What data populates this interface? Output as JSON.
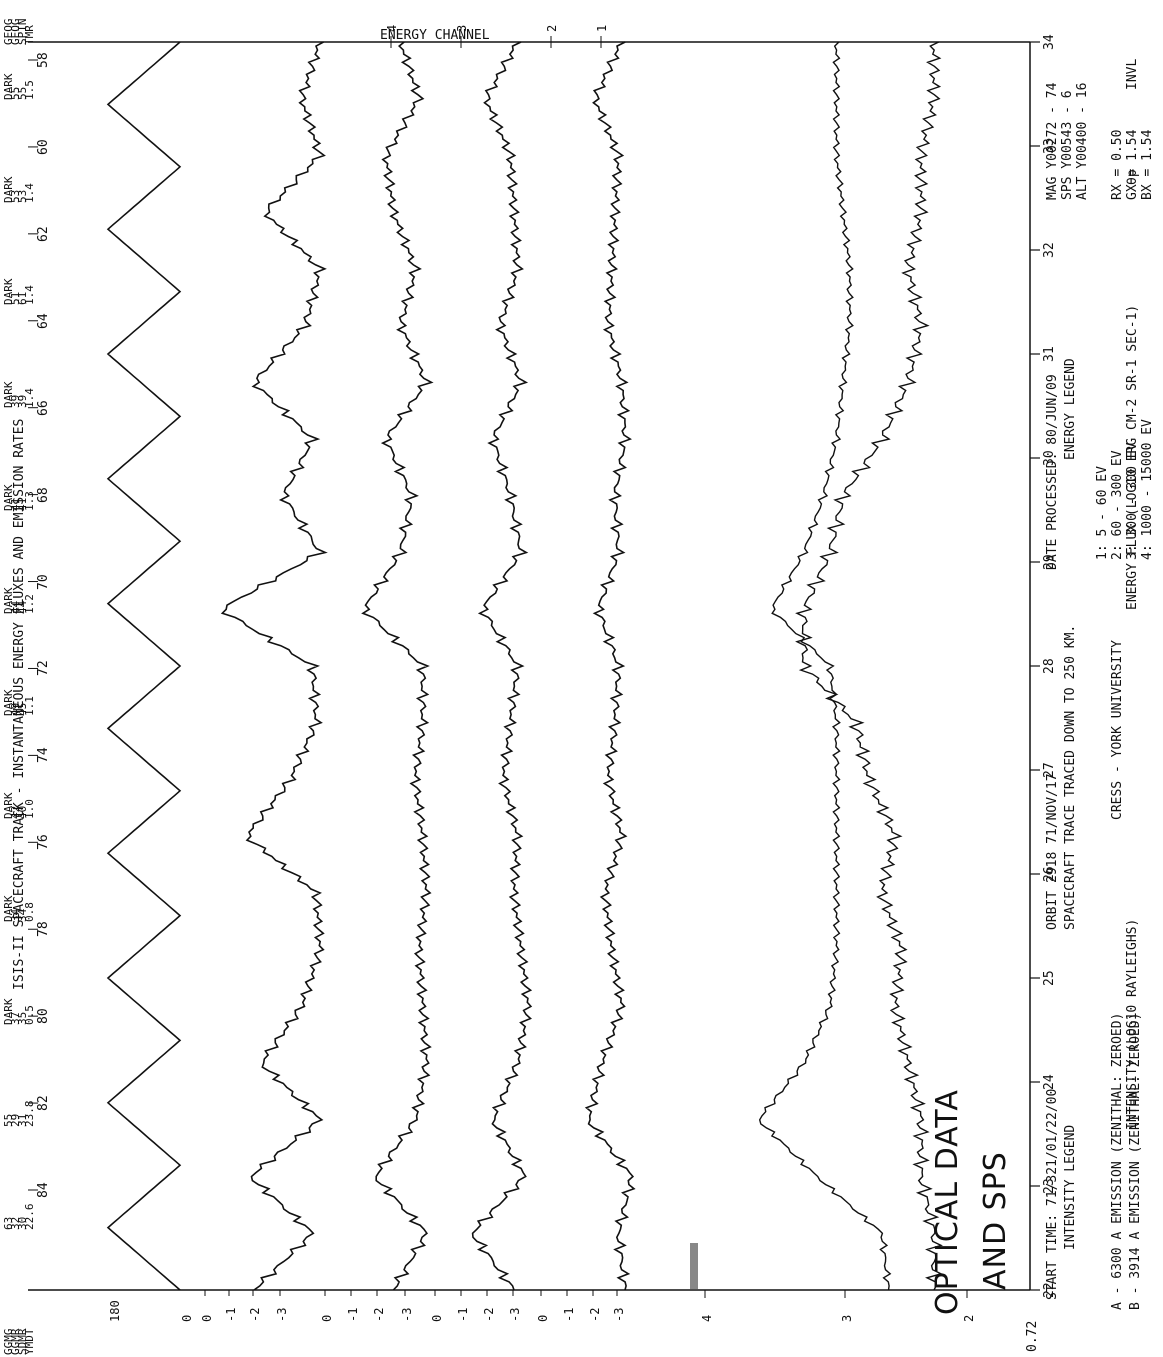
{
  "chart_data": {
    "type": "line",
    "title": "ISIS-II SPACECRAFT TRACK - INSTANTANEOUS ENERGY FLUXES AND EMISSION RATES",
    "orbit_label": "ORBIT 2918 71/NOV/17",
    "start_time_label": "START TIME: 71/321/01/22/00",
    "spacecraft_label": "SPACECRAFT TRACE TRACED DOWN TO 250 KM.",
    "date_processed_label": "DATE PROCESSED: 80/JUN/09",
    "institution": "CRESS - YORK UNIVERSITY",
    "annotation": [
      "OPTICAL DATA",
      "AND SPS"
    ],
    "energy_channel_title": "ENERGY CHANNEL",
    "time_axis": {
      "ticks": [
        "22",
        "23",
        "24",
        "25",
        "26",
        "27",
        "28",
        "29",
        "30",
        "31",
        "32",
        "33",
        "34"
      ],
      "end_label": "0.72"
    },
    "invl_axis": {
      "label": "INVL",
      "ticks": [
        "84",
        "82",
        "80",
        "78",
        "76",
        "74",
        "72",
        "70",
        "68",
        "66",
        "64",
        "62",
        "60",
        "58"
      ]
    },
    "row_labels": [
      "GGMG",
      "GGMR",
      "SDMR",
      "YMDT"
    ],
    "right_row_labels": [
      "GEOG",
      "GEOG",
      "SPIN",
      "TMR"
    ],
    "header_columns": [
      {
        "lines": [
          "63",
          "32",
          "30",
          "22.6"
        ]
      },
      {
        "lines": [
          "55",
          "29",
          "31",
          "23.8"
        ]
      },
      {
        "lines": [
          "DARK",
          "37",
          "35",
          "0.5"
        ]
      },
      {
        "lines": [
          "DARK",
          "34",
          "34",
          "0.8"
        ]
      },
      {
        "lines": [
          "DARK",
          "42",
          "40",
          "1.0"
        ]
      },
      {
        "lines": [
          "DARK",
          "49",
          "45",
          "1.1"
        ]
      },
      {
        "lines": [
          "DARK",
          "44",
          "44",
          "1.2"
        ]
      },
      {
        "lines": [
          "DARK",
          "41",
          "41",
          "1.3"
        ]
      },
      {
        "lines": [
          "DARK",
          "39",
          "39",
          "1.4"
        ]
      },
      {
        "lines": [
          "DARK",
          "51",
          "61",
          "1.4"
        ]
      },
      {
        "lines": [
          "DARK",
          "53",
          "53",
          "1.4"
        ]
      },
      {
        "lines": [
          "DARK",
          "55",
          "55",
          "1.5"
        ]
      }
    ],
    "panels": [
      {
        "label": "θp",
        "range": [
          0,
          180
        ],
        "ticks": [
          "180",
          "0"
        ]
      },
      {
        "label": "ENERGY FLUX (LOG10 ERG CM-2 SR-1 SEC-1)",
        "ticks": [
          "0",
          "-1",
          "-2",
          "-3",
          "0",
          "-1",
          "-2",
          "-3",
          "0",
          "-1",
          "-2",
          "-3",
          "0",
          "-1",
          "-2",
          "-3"
        ]
      },
      {
        "label": "INTENSITY (LOG10 RAYLEIGHS)",
        "range": [
          2,
          4
        ],
        "ticks": [
          "4",
          "3",
          "2"
        ]
      }
    ],
    "energy_channels": [
      "1",
      "2",
      "3",
      "4"
    ],
    "intensity_legend": {
      "title": "INTENSITY LEGEND",
      "entries": [
        "A - 6300 A EMISSION (ZENITHAL: ZEROED)",
        "B - 3914 A EMISSION (ZENITHAL: ZEROED)"
      ]
    },
    "energy_legend": {
      "title": "ENERGY LEGEND",
      "entries": [
        "1:    5 -    60 EV",
        "2:   60 -   300 EV",
        "3:  300 -   300 EV",
        "4: 1000 - 15000 EV"
      ]
    },
    "location_block": [
      "MAG Y00272 - 74",
      "SPS Y00543 -  6",
      "ALT Y00400 - 16"
    ],
    "scale_block": [
      "RX = 0.50",
      "GX = 1.54",
      "BX = 1.54"
    ],
    "series": [
      {
        "name": "θp",
        "values": [
          0,
          180,
          0,
          180,
          0,
          180,
          0,
          180,
          0,
          180,
          0,
          180,
          0,
          180,
          0,
          180,
          0,
          180,
          0,
          180,
          0
        ]
      },
      {
        "name": "1",
        "values": [
          -1.2,
          -2.8,
          -1.1,
          -3.0,
          -1.4,
          -2.5,
          -3.0,
          -2.9,
          -1.0,
          -2.2,
          -2.9,
          -2.8,
          -0.3,
          -3.0,
          -2.0,
          -2.8,
          -1.2,
          -2.6,
          -3.0,
          -1.5,
          -3.0,
          -2.5,
          -3.0
        ]
      },
      {
        "name": "2",
        "values": [
          -2.0,
          -2.9,
          -1.5,
          -2.6,
          -2.9,
          -2.8,
          -2.7,
          -2.9,
          -2.8,
          -2.6,
          -2.8,
          -2.8,
          -1.2,
          -2.2,
          -2.5,
          -1.8,
          -2.9,
          -2.2,
          -2.6,
          -2.0,
          -1.8,
          -2.7,
          -2.2
        ]
      },
      {
        "name": "3",
        "values": [
          -2.4,
          -1.2,
          -2.7,
          -1.8,
          -2.5,
          -2.8,
          -2.6,
          -2.4,
          -2.5,
          -2.1,
          -2.3,
          -2.5,
          -1.5,
          -2.6,
          -2.3,
          -1.8,
          -2.6,
          -2.0,
          -2.5,
          -2.4,
          -2.3,
          -1.6,
          -2.5
        ]
      },
      {
        "name": "4",
        "values": [
          -2.7,
          -2.5,
          -2.9,
          -1.6,
          -2.0,
          -2.6,
          -2.3,
          -2.1,
          -2.6,
          -2.2,
          -2.4,
          -2.5,
          -1.9,
          -2.5,
          -2.4,
          -2.7,
          -2.6,
          -2.2,
          -2.3,
          -2.4,
          -2.5,
          -1.8,
          -2.6
        ]
      },
      {
        "name": "A",
        "values": [
          2.55,
          2.6,
          3.1,
          3.55,
          3.2,
          3.0,
          2.95,
          2.95,
          2.95,
          2.95,
          2.95,
          3.0,
          3.45,
          3.2,
          3.05,
          2.95,
          2.9,
          2.85,
          2.85,
          2.9,
          2.95,
          2.95,
          2.95
        ]
      },
      {
        "name": "B",
        "values": [
          2.2,
          2.2,
          2.3,
          2.3,
          2.4,
          2.5,
          2.45,
          2.6,
          2.5,
          2.7,
          2.8,
          3.2,
          3.2,
          3.0,
          2.9,
          2.6,
          2.4,
          2.3,
          2.4,
          2.3,
          2.3,
          2.2,
          2.2
        ]
      }
    ]
  }
}
